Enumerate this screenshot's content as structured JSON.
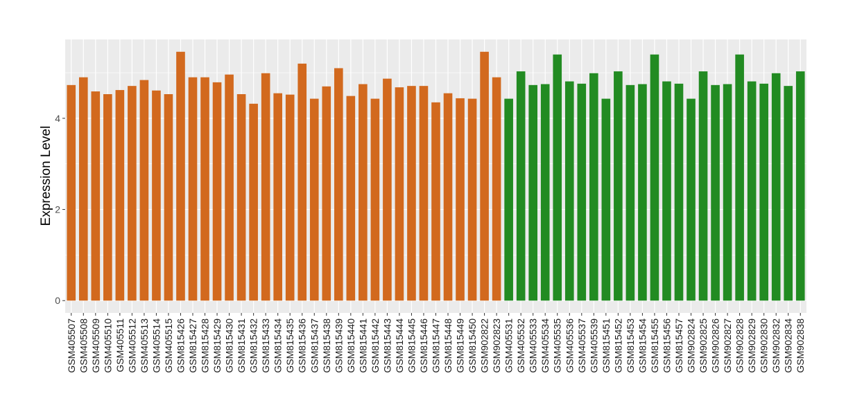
{
  "chart_data": {
    "type": "bar",
    "title": "",
    "xlabel": "",
    "ylabel": "Expression Level",
    "ylim": [
      -0.27,
      5.73
    ],
    "yticks": [
      0,
      2,
      4
    ],
    "grid": true,
    "legend": "none",
    "colors": {
      "group1": "#D2691E",
      "group2": "#228B22",
      "panel": "#EBEBEB",
      "grid": "#FFFFFF"
    },
    "categories": [
      "GSM405507",
      "GSM405508",
      "GSM405509",
      "GSM405510",
      "GSM405511",
      "GSM405512",
      "GSM405513",
      "GSM405514",
      "GSM405515",
      "GSM815426",
      "GSM815427",
      "GSM815428",
      "GSM815429",
      "GSM815430",
      "GSM815431",
      "GSM815432",
      "GSM815433",
      "GSM815434",
      "GSM815435",
      "GSM815436",
      "GSM815437",
      "GSM815438",
      "GSM815439",
      "GSM815440",
      "GSM815441",
      "GSM815442",
      "GSM815443",
      "GSM815444",
      "GSM815445",
      "GSM815446",
      "GSM815447",
      "GSM815448",
      "GSM815449",
      "GSM815450",
      "GSM902822",
      "GSM902823",
      "GSM405531",
      "GSM405532",
      "GSM405533",
      "GSM405534",
      "GSM405535",
      "GSM405536",
      "GSM405537",
      "GSM405539",
      "GSM815451",
      "GSM815452",
      "GSM815453",
      "GSM815454",
      "GSM815455",
      "GSM815456",
      "GSM815457",
      "GSM902824",
      "GSM902825",
      "GSM902826",
      "GSM902827",
      "GSM902828",
      "GSM902829",
      "GSM902830",
      "GSM902832",
      "GSM902834",
      "GSM902838"
    ],
    "values": [
      4.73,
      4.9,
      4.59,
      4.53,
      4.62,
      4.71,
      4.84,
      4.61,
      4.53,
      5.46,
      4.9,
      4.9,
      4.79,
      4.96,
      4.53,
      4.32,
      4.99,
      4.55,
      4.52,
      5.2,
      4.43,
      4.7,
      5.1,
      4.49,
      4.75,
      4.43,
      4.87,
      4.68,
      4.71,
      4.71,
      4.35,
      4.55,
      4.44,
      4.43,
      5.46,
      4.9,
      4.43,
      5.03,
      4.73,
      4.75,
      5.4,
      4.81,
      4.76,
      4.99,
      4.43,
      5.03,
      4.73,
      4.75,
      5.4,
      4.81,
      4.76,
      4.43,
      5.03,
      4.73,
      4.75,
      5.4,
      4.81,
      4.76,
      4.99,
      4.71,
      5.03
    ],
    "groups": [
      "group1",
      "group1",
      "group1",
      "group1",
      "group1",
      "group1",
      "group1",
      "group1",
      "group1",
      "group1",
      "group1",
      "group1",
      "group1",
      "group1",
      "group1",
      "group1",
      "group1",
      "group1",
      "group1",
      "group1",
      "group1",
      "group1",
      "group1",
      "group1",
      "group1",
      "group1",
      "group1",
      "group1",
      "group1",
      "group1",
      "group1",
      "group1",
      "group1",
      "group1",
      "group1",
      "group1",
      "group2",
      "group2",
      "group2",
      "group2",
      "group2",
      "group2",
      "group2",
      "group2",
      "group2",
      "group2",
      "group2",
      "group2",
      "group2",
      "group2",
      "group2",
      "group2",
      "group2",
      "group2",
      "group2",
      "group2",
      "group2",
      "group2",
      "group2",
      "group2",
      "group2"
    ]
  }
}
